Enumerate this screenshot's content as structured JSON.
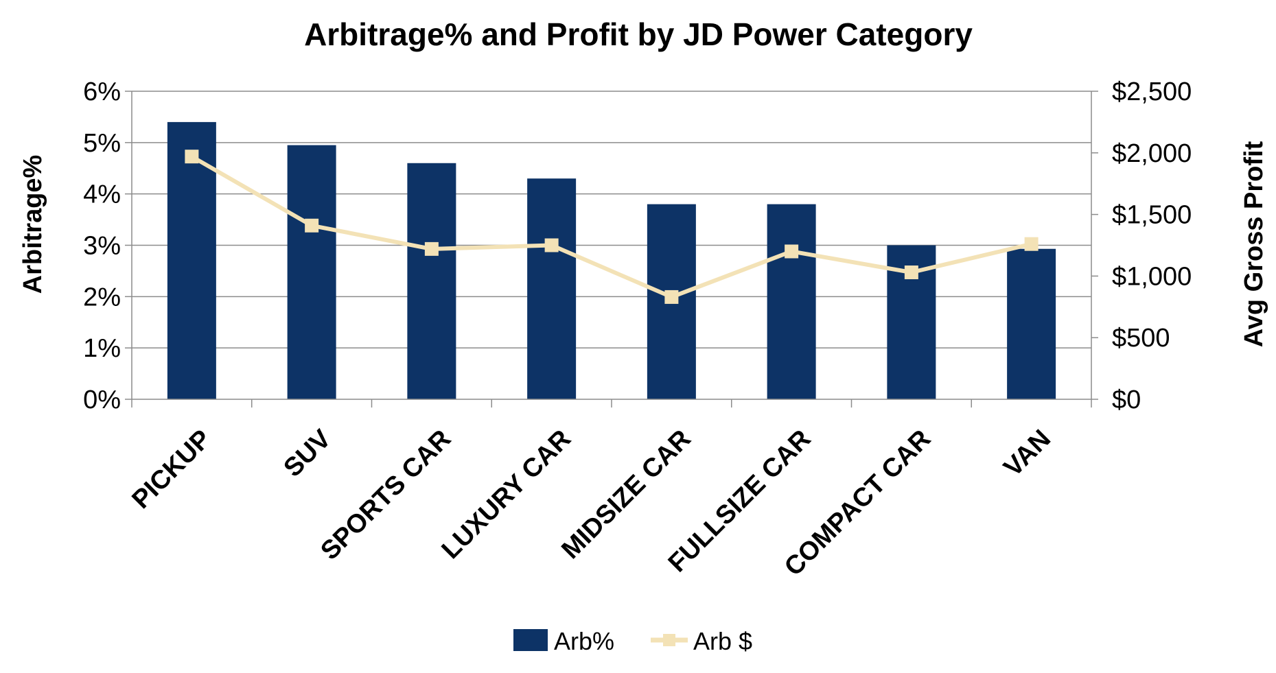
{
  "chart_data": {
    "type": "bar",
    "title": "Arbitrage% and Profit by JD Power Category",
    "categories": [
      "PICKUP",
      "SUV",
      "SPORTS CAR",
      "LUXURY CAR",
      "MIDSIZE CAR",
      "FULLSIZE CAR",
      "COMPACT CAR",
      "VAN"
    ],
    "series": [
      {
        "name": "Arb%",
        "type": "bar",
        "axis": "left",
        "color": "#0d3366",
        "values": [
          5.4,
          4.95,
          4.6,
          4.3,
          3.8,
          3.8,
          3.0,
          2.93
        ]
      },
      {
        "name": "Arb $",
        "type": "line",
        "axis": "right",
        "color": "#f3e2b6",
        "values": [
          1970,
          1410,
          1220,
          1250,
          830,
          1200,
          1030,
          1260
        ]
      }
    ],
    "y_left": {
      "label": "Arbitrage%",
      "lim": [
        0,
        6
      ],
      "ticks": [
        "0%",
        "1%",
        "2%",
        "3%",
        "4%",
        "5%",
        "6%"
      ]
    },
    "y_right": {
      "label": "Avg Gross Profit",
      "lim": [
        0,
        2500
      ],
      "ticks": [
        "$0",
        "$500",
        "$1,000",
        "$1,500",
        "$2,000",
        "$2,500"
      ]
    },
    "grid": true,
    "legend": "bottom"
  }
}
